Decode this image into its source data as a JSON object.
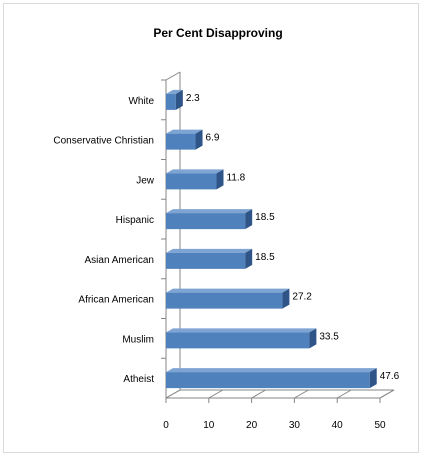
{
  "chart_data": {
    "type": "bar",
    "orientation": "horizontal",
    "title": "Per Cent Disapproving",
    "categories": [
      "White",
      "Conservative Christian",
      "Jew",
      "Hispanic",
      "Asian American",
      "African American",
      "Muslim",
      "Atheist"
    ],
    "values": [
      2.3,
      6.9,
      11.8,
      18.5,
      18.5,
      27.2,
      33.5,
      47.6
    ],
    "value_labels": [
      "2.3",
      "6.9",
      "11.8",
      "18.5",
      "18.5",
      "27.2",
      "33.5",
      "47.6"
    ],
    "xlim": [
      0,
      50
    ],
    "x_ticks": [
      "0",
      "10",
      "20",
      "30",
      "40",
      "50"
    ],
    "xlabel": "",
    "ylabel": "",
    "grid": false,
    "legend": "none",
    "bar_color": "#4f81bd",
    "bar_top_color": "#7ea4d3",
    "bar_side_color": "#2f5588"
  }
}
